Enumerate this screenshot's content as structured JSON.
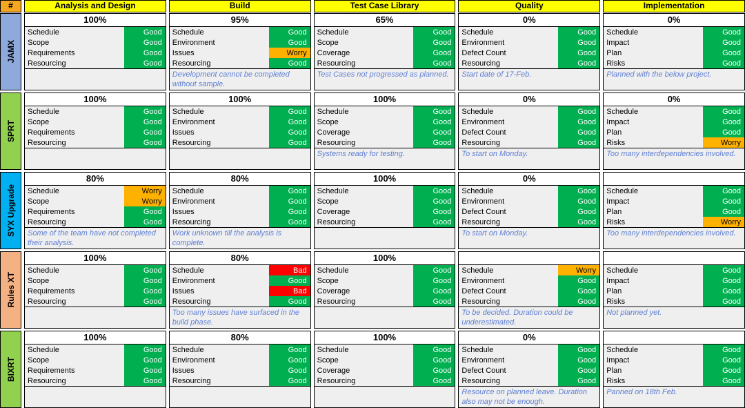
{
  "table": {
    "corner_label": "#",
    "colors": {
      "header_bg": "#FFFF00",
      "corner_bg": "#F6A621",
      "cell_bg": "#EFEFEF",
      "note_text": "#5E7FD4",
      "border": "#000000"
    },
    "phases": [
      {
        "title": "Analysis and Design",
        "items": [
          "Schedule",
          "Scope",
          "Requirements",
          "Resourcing"
        ]
      },
      {
        "title": "Build",
        "items": [
          "Schedule",
          "Environment",
          "Issues",
          "Resourcing"
        ]
      },
      {
        "title": "Test Case Library",
        "items": [
          "Schedule",
          "Scope",
          "Coverage",
          "Resourcing"
        ]
      },
      {
        "title": "Quality",
        "items": [
          "Schedule",
          "Environment",
          "Defect Count",
          "Resourcing"
        ]
      },
      {
        "title": "Implementation",
        "items": [
          "Schedule",
          "Impact",
          "Plan",
          "Risks"
        ]
      }
    ],
    "projects": [
      {
        "name": "JAMX",
        "label_color": "#8EA9DB",
        "cells": [
          {
            "percent": "100%",
            "statuses": [
              "Good",
              "Good",
              "Good",
              "Good"
            ],
            "note": ""
          },
          {
            "percent": "95%",
            "statuses": [
              "Good",
              "Good",
              "Worry",
              "Good"
            ],
            "note": "Development cannot be completed without sample."
          },
          {
            "percent": "65%",
            "statuses": [
              "Good",
              "Good",
              "Good",
              "Good"
            ],
            "note": "Test Cases not progressed as planned."
          },
          {
            "percent": "0%",
            "statuses": [
              "Good",
              "Good",
              "Good",
              "Good"
            ],
            "note": "Start date of 17-Feb."
          },
          {
            "percent": "0%",
            "statuses": [
              "Good",
              "Good",
              "Good",
              "Good"
            ],
            "note": "Planned with the below project."
          }
        ]
      },
      {
        "name": "SPRT",
        "label_color": "#92D050",
        "cells": [
          {
            "percent": "100%",
            "statuses": [
              "Good",
              "Good",
              "Good",
              "Good"
            ],
            "note": ""
          },
          {
            "percent": "100%",
            "statuses": [
              "Good",
              "Good",
              "Good",
              "Good"
            ],
            "note": ""
          },
          {
            "percent": "100%",
            "statuses": [
              "Good",
              "Good",
              "Good",
              "Good"
            ],
            "note": "Systems ready for testing."
          },
          {
            "percent": "0%",
            "statuses": [
              "Good",
              "Good",
              "Good",
              "Good"
            ],
            "note": "To start on Monday."
          },
          {
            "percent": "0%",
            "statuses": [
              "Good",
              "Good",
              "Good",
              "Worry"
            ],
            "note": "Too many interdependencies involved."
          }
        ]
      },
      {
        "name": "SYX Upgrade",
        "label_color": "#00B0F0",
        "cells": [
          {
            "percent": "80%",
            "statuses": [
              "Worry",
              "Worry",
              "Good",
              "Good"
            ],
            "note": "Some of the team have not completed their analysis."
          },
          {
            "percent": "80%",
            "statuses": [
              "Good",
              "Good",
              "Good",
              "Good"
            ],
            "note": "Work unknown till the analysis is complete."
          },
          {
            "percent": "100%",
            "statuses": [
              "Good",
              "Good",
              "Good",
              "Good"
            ],
            "note": ""
          },
          {
            "percent": "0%",
            "statuses": [
              "Good",
              "Good",
              "Good",
              "Good"
            ],
            "note": "To start on Monday."
          },
          {
            "percent": "",
            "statuses": [
              "Good",
              "Good",
              "Good",
              "Worry"
            ],
            "note": "Too many interdependencies involved."
          }
        ]
      },
      {
        "name": "Rules XT",
        "label_color": "#F4B183",
        "cells": [
          {
            "percent": "100%",
            "statuses": [
              "Good",
              "Good",
              "Good",
              "Good"
            ],
            "note": ""
          },
          {
            "percent": "80%",
            "statuses": [
              "Bad",
              "Good",
              "Bad",
              "Good"
            ],
            "note": "Too many issues have surfaced in the build phase."
          },
          {
            "percent": "100%",
            "statuses": [
              "Good",
              "Good",
              "Good",
              "Good"
            ],
            "note": ""
          },
          {
            "percent": "",
            "statuses": [
              "Worry",
              "Good",
              "Good",
              "Good"
            ],
            "note": "To be decided. Duration could be underestimated."
          },
          {
            "percent": "",
            "statuses": [
              "Good",
              "Good",
              "Good",
              "Good"
            ],
            "note": "Not planned yet."
          }
        ]
      },
      {
        "name": "BIXRT",
        "label_color": "#92D050",
        "cells": [
          {
            "percent": "100%",
            "statuses": [
              "Good",
              "Good",
              "Good",
              "Good"
            ],
            "note": ""
          },
          {
            "percent": "80%",
            "statuses": [
              "Good",
              "Good",
              "Good",
              "Good"
            ],
            "note": ""
          },
          {
            "percent": "100%",
            "statuses": [
              "Good",
              "Good",
              "Good",
              "Good"
            ],
            "note": ""
          },
          {
            "percent": "0%",
            "statuses": [
              "Good",
              "Good",
              "Good",
              "Good"
            ],
            "note": "Resource on planned leave. Duration also may not be enough."
          },
          {
            "percent": "",
            "statuses": [
              "Good",
              "Good",
              "Good",
              "Good"
            ],
            "note": "Panned on 18th Feb."
          }
        ]
      }
    ]
  },
  "status_styles": {
    "Good": {
      "bg": "#00B050",
      "fg": "#FFFFFF"
    },
    "Worry": {
      "bg": "#FFB100",
      "fg": "#000000"
    },
    "Bad": {
      "bg": "#FF0000",
      "fg": "#FFFFFF"
    }
  }
}
